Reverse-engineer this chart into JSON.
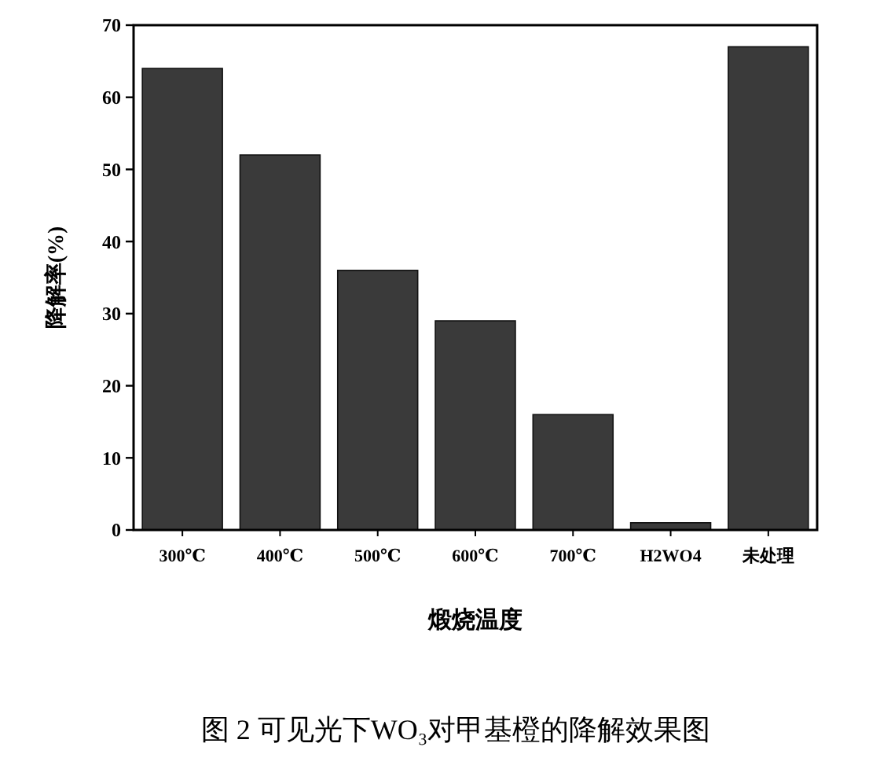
{
  "chart_data": {
    "type": "bar",
    "xlabel": "煅烧温度",
    "ylabel": "降解率(%)",
    "categories": [
      "300℃",
      "400℃",
      "500℃",
      "600℃",
      "700℃",
      "H2WO4",
      "未处理"
    ],
    "values": [
      64,
      52,
      36,
      29,
      16,
      1,
      67
    ],
    "color": "#3a3a3a",
    "ylim": [
      0,
      70
    ],
    "yticks": [
      0,
      10,
      20,
      30,
      40,
      50,
      60,
      70
    ],
    "grid": false,
    "annotations": [
      "图 2 可见光下WO₃对甲基橙的降解效果图"
    ]
  }
}
